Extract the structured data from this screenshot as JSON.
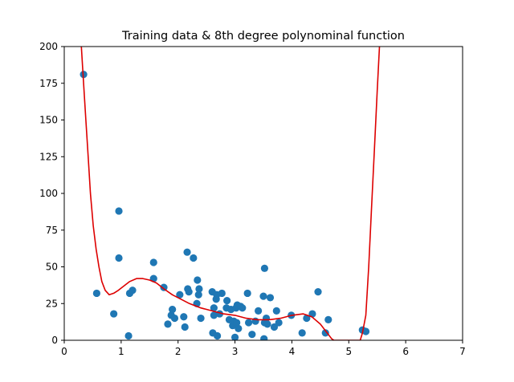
{
  "chart_data": {
    "type": "scatter",
    "title": "Training data & 8th degree polynominal function",
    "xlabel": "",
    "ylabel": "",
    "xlim": [
      0,
      7
    ],
    "ylim": [
      0,
      200
    ],
    "xticks": [
      0,
      1,
      2,
      3,
      4,
      5,
      6,
      7
    ],
    "yticks": [
      0,
      25,
      50,
      75,
      100,
      125,
      150,
      175,
      200
    ],
    "xtick_labels": [
      "0",
      "1",
      "2",
      "3",
      "4",
      "5",
      "6",
      "7"
    ],
    "ytick_labels": [
      "0",
      "25",
      "50",
      "75",
      "100",
      "125",
      "150",
      "175",
      "200"
    ],
    "grid": false,
    "colors": {
      "points": "#1f77b4",
      "curve": "#dd0000"
    },
    "series": [
      {
        "type": "scatter",
        "points": [
          [
            0.34,
            181
          ],
          [
            0.57,
            32
          ],
          [
            0.87,
            18
          ],
          [
            0.96,
            88
          ],
          [
            0.96,
            56
          ],
          [
            1.13,
            3
          ],
          [
            1.15,
            32
          ],
          [
            1.2,
            34
          ],
          [
            1.57,
            53
          ],
          [
            1.57,
            42
          ],
          [
            1.75,
            36
          ],
          [
            1.82,
            11
          ],
          [
            1.88,
            17
          ],
          [
            1.9,
            21
          ],
          [
            1.94,
            15
          ],
          [
            2.03,
            31
          ],
          [
            2.1,
            16
          ],
          [
            2.12,
            9
          ],
          [
            2.16,
            60
          ],
          [
            2.17,
            35
          ],
          [
            2.19,
            33
          ],
          [
            2.27,
            56
          ],
          [
            2.33,
            25
          ],
          [
            2.34,
            41
          ],
          [
            2.36,
            31
          ],
          [
            2.37,
            35
          ],
          [
            2.4,
            15
          ],
          [
            2.6,
            33
          ],
          [
            2.61,
            5
          ],
          [
            2.63,
            22
          ],
          [
            2.63,
            17
          ],
          [
            2.67,
            28
          ],
          [
            2.68,
            31
          ],
          [
            2.69,
            3
          ],
          [
            2.73,
            18
          ],
          [
            2.77,
            32
          ],
          [
            2.85,
            22
          ],
          [
            2.86,
            27
          ],
          [
            2.9,
            14
          ],
          [
            2.93,
            21
          ],
          [
            2.96,
            10
          ],
          [
            2.98,
            13
          ],
          [
            3.0,
            2
          ],
          [
            3.02,
            22
          ],
          [
            3.03,
            12
          ],
          [
            3.04,
            24
          ],
          [
            3.06,
            8
          ],
          [
            3.1,
            23
          ],
          [
            3.13,
            22
          ],
          [
            3.22,
            32
          ],
          [
            3.24,
            12
          ],
          [
            3.3,
            4
          ],
          [
            3.36,
            13
          ],
          [
            3.41,
            20
          ],
          [
            3.5,
            30
          ],
          [
            3.51,
            1
          ],
          [
            3.52,
            49
          ],
          [
            3.52,
            12
          ],
          [
            3.55,
            15
          ],
          [
            3.57,
            11
          ],
          [
            3.62,
            29
          ],
          [
            3.69,
            9
          ],
          [
            3.73,
            20
          ],
          [
            3.77,
            12
          ],
          [
            3.99,
            17
          ],
          [
            4.18,
            5
          ],
          [
            4.26,
            15
          ],
          [
            4.36,
            18
          ],
          [
            4.46,
            33
          ],
          [
            4.59,
            5
          ],
          [
            4.64,
            14
          ],
          [
            5.24,
            7
          ],
          [
            5.3,
            6
          ]
        ]
      },
      {
        "type": "line",
        "points": [
          [
            0.3,
            200
          ],
          [
            0.33,
            181
          ],
          [
            0.38,
            150
          ],
          [
            0.42,
            125
          ],
          [
            0.46,
            100
          ],
          [
            0.51,
            78
          ],
          [
            0.56,
            62
          ],
          [
            0.61,
            50
          ],
          [
            0.66,
            40
          ],
          [
            0.72,
            34
          ],
          [
            0.79,
            31
          ],
          [
            0.87,
            32
          ],
          [
            0.95,
            34
          ],
          [
            1.05,
            37
          ],
          [
            1.15,
            40
          ],
          [
            1.27,
            42
          ],
          [
            1.38,
            42
          ],
          [
            1.5,
            41
          ],
          [
            1.62,
            39
          ],
          [
            1.75,
            35
          ],
          [
            1.9,
            31
          ],
          [
            2.05,
            28
          ],
          [
            2.2,
            25
          ],
          [
            2.4,
            22
          ],
          [
            2.6,
            20
          ],
          [
            2.8,
            18
          ],
          [
            3.0,
            17
          ],
          [
            3.2,
            15
          ],
          [
            3.4,
            14
          ],
          [
            3.6,
            14
          ],
          [
            3.8,
            15
          ],
          [
            4.0,
            17
          ],
          [
            4.2,
            18
          ],
          [
            4.35,
            16
          ],
          [
            4.5,
            11
          ],
          [
            4.62,
            5
          ],
          [
            4.7,
            1
          ],
          [
            4.74,
            0
          ],
          [
            5.2,
            0
          ],
          [
            5.24,
            5
          ],
          [
            5.3,
            17
          ],
          [
            5.35,
            50
          ],
          [
            5.4,
            90
          ],
          [
            5.45,
            130
          ],
          [
            5.5,
            170
          ],
          [
            5.54,
            200
          ]
        ]
      }
    ]
  }
}
